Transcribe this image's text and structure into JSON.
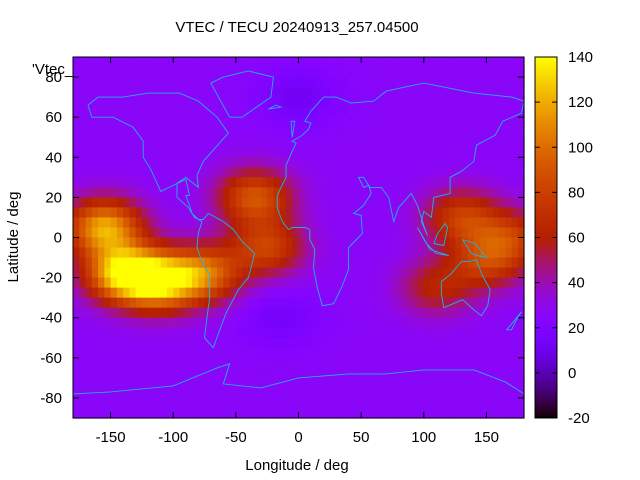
{
  "chart_data": {
    "type": "heatmap",
    "title": "VTEC / TECU 20240913_257.04500",
    "xlabel": "Longitude / deg",
    "ylabel": "Latitude / deg",
    "key_label": "'Vtec_",
    "xlim": [
      -180,
      180
    ],
    "ylim": [
      -90,
      90
    ],
    "x_ticks": [
      -150,
      -100,
      -50,
      0,
      50,
      100,
      150
    ],
    "y_ticks": [
      -80,
      -60,
      -40,
      -20,
      0,
      20,
      40,
      60,
      80
    ],
    "colorbar": {
      "min": -20,
      "max": 140,
      "ticks": [
        -20,
        0,
        20,
        40,
        60,
        80,
        100,
        120,
        140
      ],
      "palette": "black-purple-red-orange-yellow"
    },
    "grid_step_deg": 5,
    "field": {
      "base_value": 26,
      "description_of_features": [
        {
          "lon": -155,
          "lat": 5,
          "peak": 118
        },
        {
          "lon": -140,
          "lat": -18,
          "peak": 128
        },
        {
          "lon": -110,
          "lat": -22,
          "peak": 120
        },
        {
          "lon": -75,
          "lat": -18,
          "peak": 95
        },
        {
          "lon": -35,
          "lat": 20,
          "peak": 90
        },
        {
          "lon": -25,
          "lat": -5,
          "peak": 80
        },
        {
          "lon": 130,
          "lat": 10,
          "peak": 78
        },
        {
          "lon": 150,
          "lat": -12,
          "peak": 72
        },
        {
          "lon": 110,
          "lat": -25,
          "peak": 62
        },
        {
          "lon": 170,
          "lat": 0,
          "peak": 70
        },
        {
          "lon": 0,
          "lat": 70,
          "peak": 12
        },
        {
          "lon": -15,
          "lat": -40,
          "peak": 14
        }
      ]
    }
  }
}
